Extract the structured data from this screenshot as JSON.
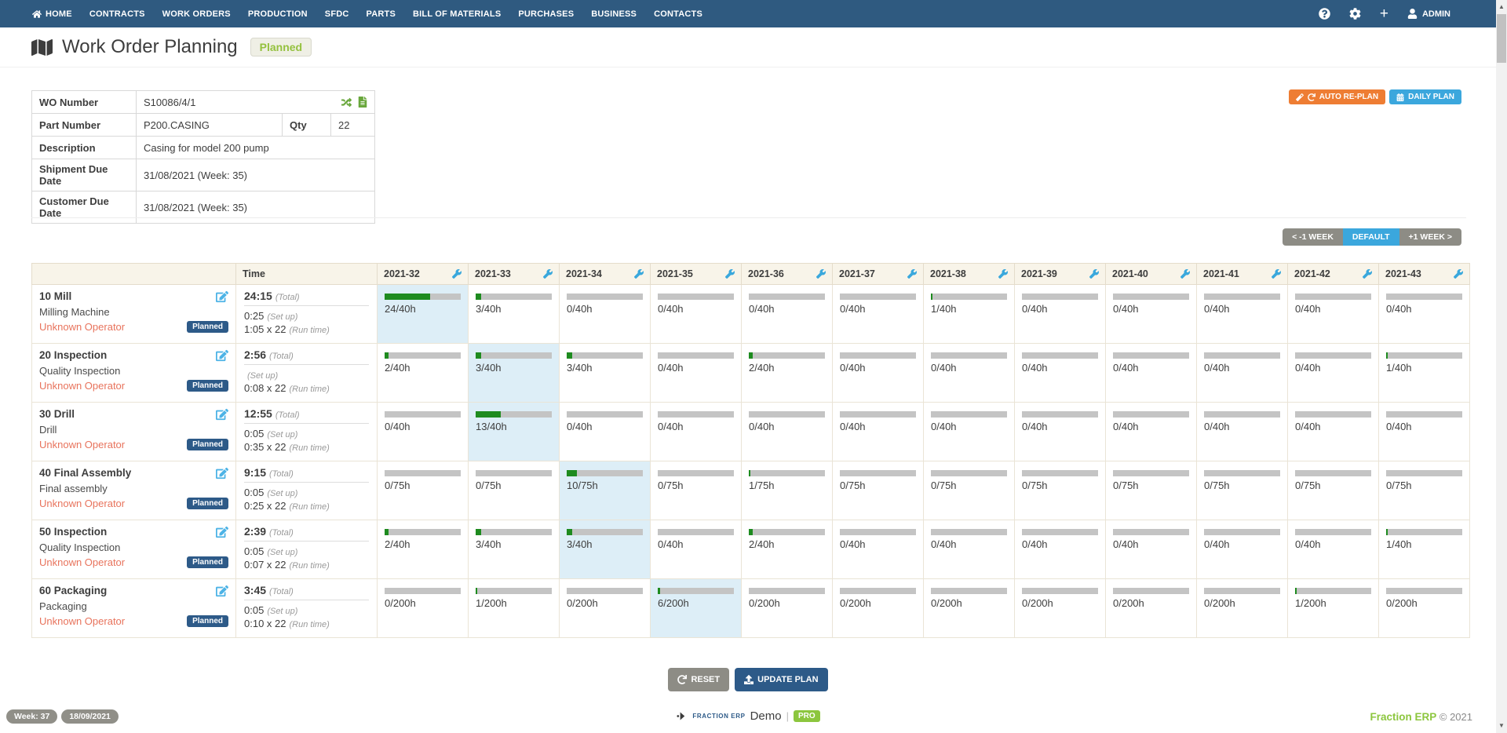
{
  "navbar": {
    "items": [
      "HOME",
      "CONTRACTS",
      "WORK ORDERS",
      "PRODUCTION",
      "SFDC",
      "PARTS",
      "BILL OF MATERIALS",
      "PURCHASES",
      "BUSINESS",
      "CONTACTS"
    ],
    "admin_label": "ADMIN"
  },
  "header": {
    "title": "Work Order Planning",
    "status_badge": "Planned"
  },
  "details": {
    "wo_number_label": "WO Number",
    "wo_number": "S10086/4/1",
    "part_number_label": "Part Number",
    "part_number": "P200.CASING",
    "qty_label": "Qty",
    "qty": "22",
    "description_label": "Description",
    "description": "Casing for model 200 pump",
    "shipment_label": "Shipment Due Date",
    "shipment_date": "31/08/2021 (Week: 35)",
    "customer_label": "Customer Due Date",
    "customer_date": "31/08/2021 (Week: 35)"
  },
  "actions": {
    "auto_replan": "AUTO RE-PLAN",
    "daily_plan": "DAILY PLAN"
  },
  "week_nav": {
    "prev": "< -1 WEEK",
    "default": "DEFAULT",
    "next": "+1 WEEK >"
  },
  "plan_table": {
    "time_header": "Time",
    "weeks": [
      "2021-32",
      "2021-33",
      "2021-34",
      "2021-35",
      "2021-36",
      "2021-37",
      "2021-38",
      "2021-39",
      "2021-40",
      "2021-41",
      "2021-42",
      "2021-43"
    ],
    "total_suffix": "(Total)",
    "setup_suffix": "(Set up)",
    "runtime_suffix": "(Run time)",
    "rows": [
      {
        "operation": "10 Mill",
        "resource": "Milling Machine",
        "operator": "Unknown Operator",
        "status": "Planned",
        "total": "24:15",
        "setup": "0:25",
        "runtime": "1:05 x 22",
        "highlight_index": 0,
        "cells": [
          "24/40h",
          "3/40h",
          "0/40h",
          "0/40h",
          "0/40h",
          "0/40h",
          "1/40h",
          "0/40h",
          "0/40h",
          "0/40h",
          "0/40h",
          "0/40h"
        ]
      },
      {
        "operation": "20 Inspection",
        "resource": "Quality Inspection",
        "operator": "Unknown Operator",
        "status": "Planned",
        "total": "2:56",
        "setup": "",
        "runtime": "0:08 x 22",
        "highlight_index": 1,
        "cells": [
          "2/40h",
          "3/40h",
          "3/40h",
          "0/40h",
          "2/40h",
          "0/40h",
          "0/40h",
          "0/40h",
          "0/40h",
          "0/40h",
          "0/40h",
          "1/40h"
        ]
      },
      {
        "operation": "30 Drill",
        "resource": "Drill",
        "operator": "Unknown Operator",
        "status": "Planned",
        "total": "12:55",
        "setup": "0:05",
        "runtime": "0:35 x 22",
        "highlight_index": 1,
        "cells": [
          "0/40h",
          "13/40h",
          "0/40h",
          "0/40h",
          "0/40h",
          "0/40h",
          "0/40h",
          "0/40h",
          "0/40h",
          "0/40h",
          "0/40h",
          "0/40h"
        ]
      },
      {
        "operation": "40 Final Assembly",
        "resource": "Final assembly",
        "operator": "Unknown Operator",
        "status": "Planned",
        "total": "9:15",
        "setup": "0:05",
        "runtime": "0:25 x 22",
        "highlight_index": 2,
        "cells": [
          "0/75h",
          "0/75h",
          "10/75h",
          "0/75h",
          "1/75h",
          "0/75h",
          "0/75h",
          "0/75h",
          "0/75h",
          "0/75h",
          "0/75h",
          "0/75h"
        ]
      },
      {
        "operation": "50 Inspection",
        "resource": "Quality Inspection",
        "operator": "Unknown Operator",
        "status": "Planned",
        "total": "2:39",
        "setup": "0:05",
        "runtime": "0:07 x 22",
        "highlight_index": 2,
        "cells": [
          "2/40h",
          "3/40h",
          "3/40h",
          "0/40h",
          "2/40h",
          "0/40h",
          "0/40h",
          "0/40h",
          "0/40h",
          "0/40h",
          "0/40h",
          "1/40h"
        ]
      },
      {
        "operation": "60 Packaging",
        "resource": "Packaging",
        "operator": "Unknown Operator",
        "status": "Planned",
        "total": "3:45",
        "setup": "0:05",
        "runtime": "0:10 x 22",
        "highlight_index": 3,
        "cells": [
          "0/200h",
          "1/200h",
          "0/200h",
          "6/200h",
          "0/200h",
          "0/200h",
          "0/200h",
          "0/200h",
          "0/200h",
          "0/200h",
          "1/200h",
          "0/200h"
        ]
      }
    ]
  },
  "bottom_actions": {
    "reset": "RESET",
    "update_plan": "UPDATE PLAN"
  },
  "footer": {
    "week_badge": "Week: 37",
    "date_badge": "18/09/2021",
    "brand_small": "FRACTION ERP",
    "brand_demo": "Demo",
    "brand_divider": "|",
    "brand_pro": "PRO",
    "copyright_brand": "Fraction ERP",
    "copyright": "© 2021"
  },
  "colors": {
    "navbar": "#2f5a80",
    "accent_orange": "#ee7d33",
    "accent_blue": "#3ba7dd",
    "accent_navy": "#2d5a88",
    "accent_green": "#8cc63e",
    "bar_fill": "#1e8b1f",
    "bar_track": "#c4c4c4",
    "highlight_cell": "#ddeef7",
    "operator_warning": "#e8735c"
  }
}
